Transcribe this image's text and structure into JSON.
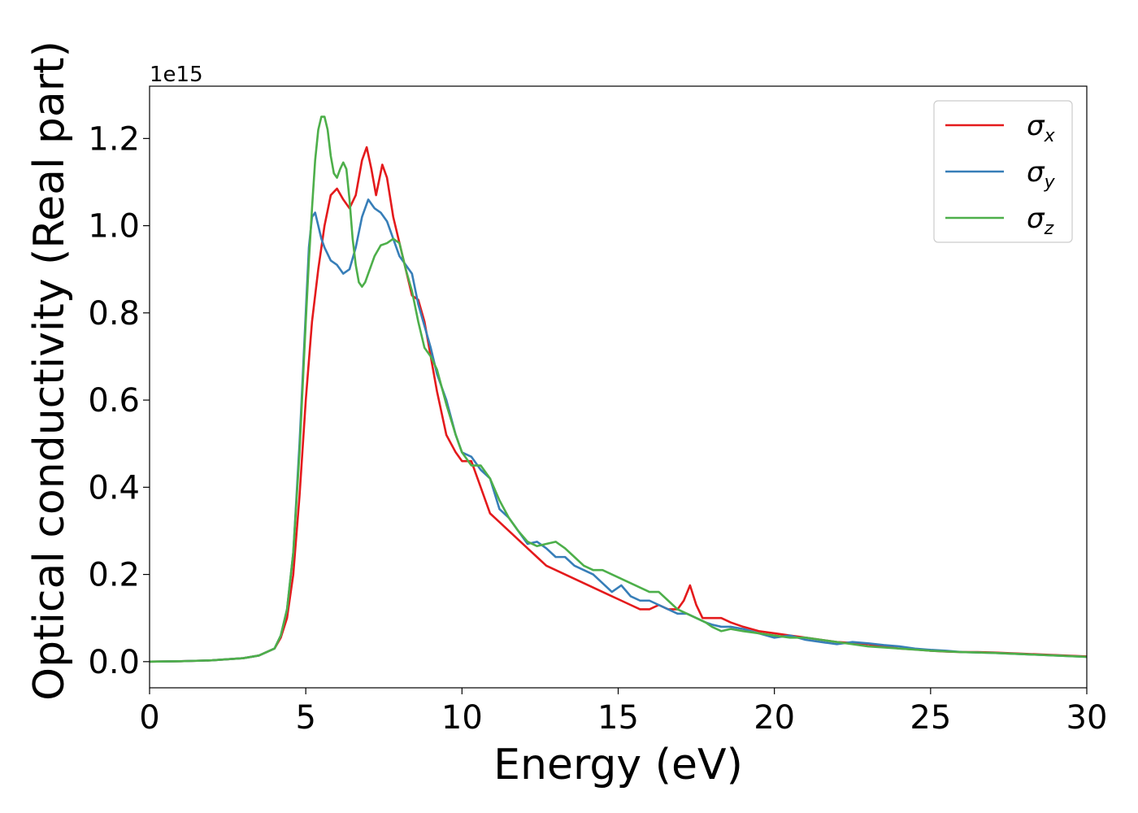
{
  "chart_data": {
    "type": "line",
    "xlabel": "Energy (eV)",
    "ylabel": "Optical conductivity (Real part)",
    "y_offset_label": "1e15",
    "xlim": [
      0,
      30
    ],
    "ylim": [
      -0.06,
      1.32
    ],
    "y_scale_factor": 1000000000000000.0,
    "x_ticks": [
      0,
      5,
      10,
      15,
      20,
      25,
      30
    ],
    "x_tick_labels": [
      "0",
      "5",
      "10",
      "15",
      "20",
      "25",
      "30"
    ],
    "y_ticks": [
      0.0,
      0.2,
      0.4,
      0.6,
      0.8,
      1.0,
      1.2
    ],
    "y_tick_labels": [
      "0.0",
      "0.2",
      "0.4",
      "0.6",
      "0.8",
      "1.0",
      "1.2"
    ],
    "grid": false,
    "legend_position": "top-right",
    "series": [
      {
        "name": "σx",
        "legend_symbol": "σ",
        "legend_subscript": "x",
        "color": "#e41a1c",
        "x": [
          0,
          1,
          2,
          3,
          3.5,
          4,
          4.2,
          4.4,
          4.6,
          4.8,
          5,
          5.2,
          5.4,
          5.6,
          5.8,
          6,
          6.2,
          6.4,
          6.6,
          6.8,
          6.95,
          7.1,
          7.25,
          7.45,
          7.6,
          7.8,
          8,
          8.2,
          8.4,
          8.6,
          8.8,
          9,
          9.2,
          9.5,
          9.8,
          10,
          10.3,
          10.6,
          10.9,
          11.2,
          11.5,
          11.8,
          12.1,
          12.4,
          12.7,
          13,
          13.3,
          13.6,
          13.9,
          14.2,
          14.5,
          14.8,
          15.1,
          15.4,
          15.7,
          16,
          16.3,
          16.6,
          16.9,
          17.1,
          17.3,
          17.5,
          17.7,
          18,
          18.3,
          18.6,
          19,
          19.5,
          20,
          20.5,
          21,
          21.5,
          22,
          22.5,
          23,
          23.5,
          24,
          24.5,
          25,
          25.5,
          26,
          26.5,
          27,
          28,
          29,
          30
        ],
        "y": [
          0.0,
          0.001,
          0.003,
          0.008,
          0.014,
          0.03,
          0.055,
          0.1,
          0.2,
          0.38,
          0.6,
          0.78,
          0.9,
          1.0,
          1.07,
          1.085,
          1.06,
          1.04,
          1.07,
          1.15,
          1.18,
          1.13,
          1.07,
          1.14,
          1.11,
          1.02,
          0.96,
          0.9,
          0.84,
          0.83,
          0.78,
          0.7,
          0.62,
          0.52,
          0.48,
          0.46,
          0.46,
          0.4,
          0.34,
          0.32,
          0.3,
          0.28,
          0.26,
          0.24,
          0.22,
          0.21,
          0.2,
          0.19,
          0.18,
          0.17,
          0.16,
          0.15,
          0.14,
          0.13,
          0.12,
          0.12,
          0.13,
          0.12,
          0.12,
          0.14,
          0.175,
          0.13,
          0.1,
          0.1,
          0.1,
          0.09,
          0.08,
          0.07,
          0.065,
          0.06,
          0.055,
          0.05,
          0.045,
          0.043,
          0.04,
          0.035,
          0.03,
          0.028,
          0.025,
          0.023,
          0.022,
          0.022,
          0.021,
          0.018,
          0.015,
          0.012
        ]
      },
      {
        "name": "σy",
        "legend_symbol": "σ",
        "legend_subscript": "y",
        "color": "#377eb8",
        "x": [
          0,
          1,
          2,
          3,
          3.5,
          4,
          4.2,
          4.4,
          4.6,
          4.8,
          5,
          5.1,
          5.2,
          5.3,
          5.4,
          5.5,
          5.6,
          5.8,
          6,
          6.2,
          6.4,
          6.6,
          6.8,
          7,
          7.2,
          7.4,
          7.6,
          7.8,
          8,
          8.2,
          8.4,
          8.6,
          8.8,
          9,
          9.2,
          9.5,
          9.8,
          10,
          10.3,
          10.6,
          10.9,
          11.2,
          11.5,
          11.8,
          12.1,
          12.4,
          12.7,
          13,
          13.3,
          13.6,
          13.9,
          14.2,
          14.5,
          14.8,
          15.1,
          15.4,
          15.7,
          16,
          16.3,
          16.6,
          16.9,
          17.2,
          17.5,
          17.8,
          18,
          18.3,
          18.6,
          19,
          19.5,
          20,
          20.5,
          21,
          21.5,
          22,
          22.5,
          23,
          23.5,
          24,
          24.5,
          25,
          25.5,
          26,
          27,
          28,
          29,
          30
        ],
        "y": [
          0.0,
          0.001,
          0.003,
          0.008,
          0.014,
          0.03,
          0.06,
          0.12,
          0.25,
          0.5,
          0.8,
          0.95,
          1.02,
          1.03,
          1.0,
          0.97,
          0.95,
          0.92,
          0.91,
          0.89,
          0.9,
          0.95,
          1.02,
          1.06,
          1.04,
          1.03,
          1.01,
          0.97,
          0.93,
          0.91,
          0.89,
          0.82,
          0.77,
          0.72,
          0.66,
          0.6,
          0.52,
          0.48,
          0.47,
          0.44,
          0.42,
          0.35,
          0.33,
          0.3,
          0.27,
          0.275,
          0.26,
          0.24,
          0.24,
          0.22,
          0.21,
          0.2,
          0.18,
          0.16,
          0.175,
          0.15,
          0.14,
          0.14,
          0.13,
          0.12,
          0.11,
          0.11,
          0.1,
          0.09,
          0.085,
          0.08,
          0.08,
          0.075,
          0.065,
          0.055,
          0.06,
          0.05,
          0.045,
          0.04,
          0.045,
          0.042,
          0.038,
          0.035,
          0.03,
          0.027,
          0.025,
          0.022,
          0.02,
          0.017,
          0.014,
          0.011
        ]
      },
      {
        "name": "σz",
        "legend_symbol": "σ",
        "legend_subscript": "z",
        "color": "#4daf4a",
        "x": [
          0,
          1,
          2,
          3,
          3.5,
          4,
          4.2,
          4.4,
          4.6,
          4.8,
          5,
          5.1,
          5.2,
          5.3,
          5.4,
          5.5,
          5.6,
          5.7,
          5.8,
          5.9,
          6,
          6.1,
          6.2,
          6.3,
          6.4,
          6.5,
          6.6,
          6.7,
          6.8,
          6.9,
          7,
          7.2,
          7.4,
          7.6,
          7.8,
          8,
          8.2,
          8.4,
          8.6,
          8.8,
          9,
          9.2,
          9.5,
          9.8,
          10,
          10.3,
          10.6,
          10.9,
          11.2,
          11.5,
          11.8,
          12.1,
          12.4,
          12.7,
          13,
          13.3,
          13.6,
          13.9,
          14.2,
          14.5,
          14.8,
          15.1,
          15.4,
          15.7,
          16,
          16.3,
          16.6,
          16.9,
          17.2,
          17.5,
          17.8,
          18,
          18.3,
          18.6,
          19,
          19.5,
          20,
          20.5,
          21,
          21.5,
          22,
          22.5,
          23,
          24,
          25,
          26,
          27,
          28,
          29,
          30
        ],
        "y": [
          0.0,
          0.001,
          0.003,
          0.008,
          0.014,
          0.03,
          0.06,
          0.12,
          0.25,
          0.48,
          0.78,
          0.92,
          1.04,
          1.15,
          1.22,
          1.25,
          1.25,
          1.22,
          1.16,
          1.12,
          1.11,
          1.13,
          1.145,
          1.13,
          1.06,
          0.97,
          0.91,
          0.87,
          0.86,
          0.87,
          0.89,
          0.93,
          0.955,
          0.96,
          0.97,
          0.96,
          0.9,
          0.85,
          0.78,
          0.72,
          0.7,
          0.67,
          0.59,
          0.52,
          0.48,
          0.45,
          0.45,
          0.42,
          0.37,
          0.33,
          0.3,
          0.275,
          0.265,
          0.27,
          0.275,
          0.26,
          0.24,
          0.22,
          0.21,
          0.21,
          0.2,
          0.19,
          0.18,
          0.17,
          0.16,
          0.16,
          0.14,
          0.12,
          0.11,
          0.1,
          0.09,
          0.08,
          0.07,
          0.075,
          0.07,
          0.065,
          0.06,
          0.055,
          0.055,
          0.05,
          0.045,
          0.04,
          0.035,
          0.03,
          0.025,
          0.022,
          0.02,
          0.017,
          0.014,
          0.011
        ]
      }
    ]
  }
}
